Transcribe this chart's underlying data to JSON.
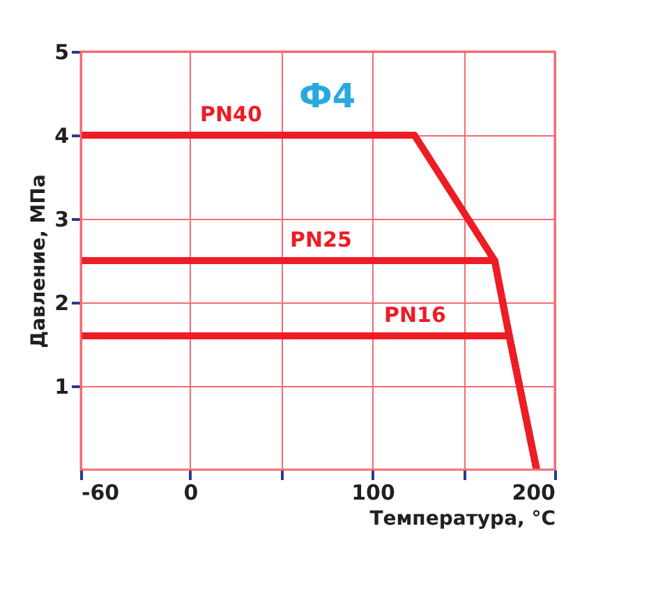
{
  "chart_data": {
    "type": "line",
    "xlabel": "Температура, °C",
    "ylabel": "Давление, МПа",
    "annotations": [
      "Ф4"
    ],
    "xlim": [
      -60,
      200
    ],
    "xticks": [
      -60,
      0,
      {
        "value": 50,
        "label": null
      },
      100,
      {
        "value": 150,
        "label": null
      },
      200
    ],
    "ylim": [
      0,
      5
    ],
    "yticks": [
      1,
      2,
      3,
      4,
      5
    ],
    "grid": true,
    "marker": "none",
    "line_style": "solid",
    "legend": false,
    "series": [
      {
        "name": "PN40",
        "color": "#ee1c25",
        "x": [
          -60,
          123,
          167,
          175,
          190
        ],
        "values": [
          4,
          4,
          2.5,
          1.6,
          0
        ]
      },
      {
        "name": "PN25",
        "color": "#ee1c25",
        "x": [
          -60,
          167,
          175,
          190
        ],
        "values": [
          2.5,
          2.5,
          1.6,
          0
        ]
      },
      {
        "name": "PN16",
        "color": "#ee1c25",
        "x": [
          -60,
          175,
          190
        ],
        "values": [
          1.6,
          1.6,
          0
        ]
      }
    ]
  }
}
